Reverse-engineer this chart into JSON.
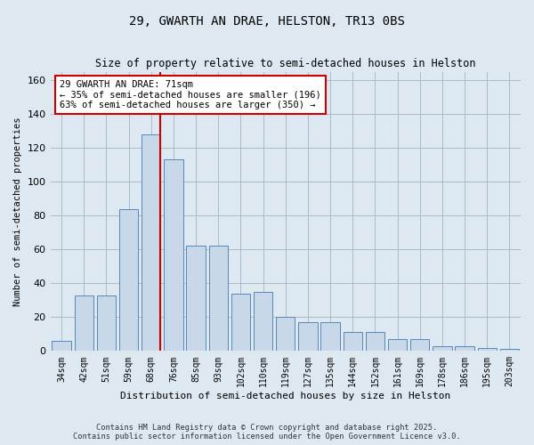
{
  "title1": "29, GWARTH AN DRAE, HELSTON, TR13 0BS",
  "title2": "Size of property relative to semi-detached houses in Helston",
  "xlabel": "Distribution of semi-detached houses by size in Helston",
  "ylabel": "Number of semi-detached properties",
  "categories": [
    "34sqm",
    "42sqm",
    "51sqm",
    "59sqm",
    "68sqm",
    "76sqm",
    "85sqm",
    "93sqm",
    "102sqm",
    "110sqm",
    "119sqm",
    "127sqm",
    "135sqm",
    "144sqm",
    "152sqm",
    "161sqm",
    "169sqm",
    "178sqm",
    "186sqm",
    "195sqm",
    "203sqm"
  ],
  "values": [
    6,
    33,
    33,
    84,
    128,
    113,
    62,
    62,
    34,
    35,
    20,
    17,
    17,
    11,
    11,
    7,
    7,
    3,
    3,
    2,
    1
  ],
  "bar_color": "#c8d8e8",
  "bar_edge_color": "#5588bb",
  "vline_x_index": 4,
  "vline_color": "#cc0000",
  "annotation_text": "29 GWARTH AN DRAE: 71sqm\n← 35% of semi-detached houses are smaller (196)\n63% of semi-detached houses are larger (350) →",
  "annotation_box_color": "#ffffff",
  "annotation_box_edge": "#cc0000",
  "ylim": [
    0,
    165
  ],
  "yticks": [
    0,
    20,
    40,
    60,
    80,
    100,
    120,
    140,
    160
  ],
  "grid_color": "#aabbcc",
  "bg_color": "#dde8f0",
  "footer1": "Contains HM Land Registry data © Crown copyright and database right 2025.",
  "footer2": "Contains public sector information licensed under the Open Government Licence v3.0."
}
